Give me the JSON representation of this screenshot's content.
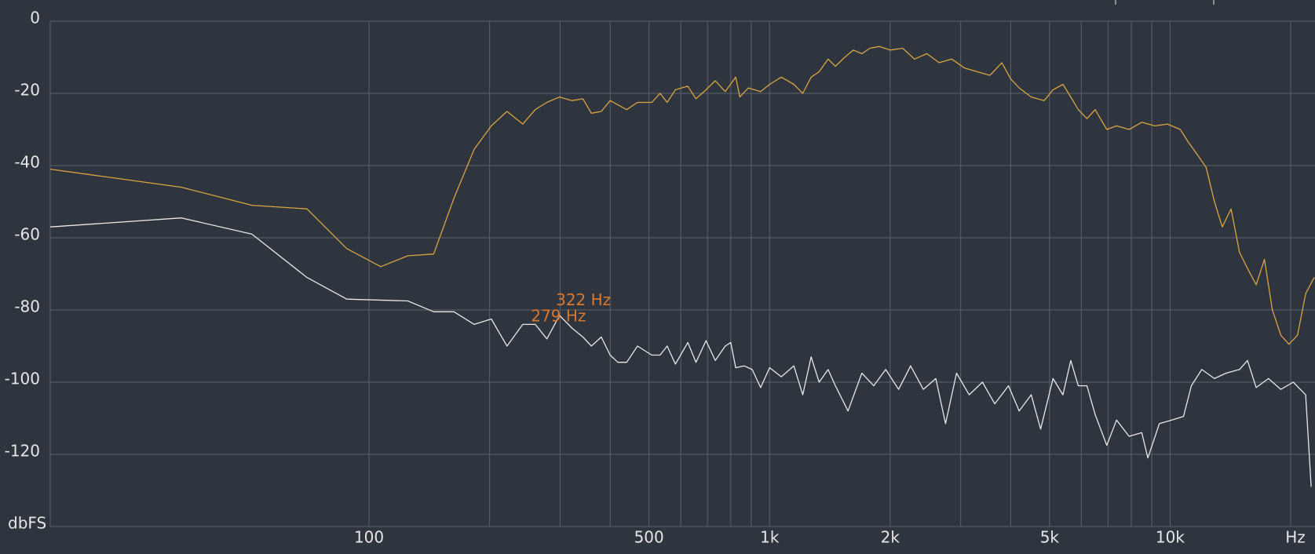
{
  "chart_data": {
    "type": "line",
    "xscale": "log",
    "xlim": [
      16,
      23000
    ],
    "ylim": [
      -140,
      0
    ],
    "xticks": [
      100,
      500,
      {
        "value": 1000,
        "label": "1k"
      },
      {
        "value": 2000,
        "label": "2k"
      },
      {
        "value": 5000,
        "label": "5k"
      },
      {
        "value": 10000,
        "label": "10k"
      }
    ],
    "xgrid_minor": [
      200,
      300,
      400,
      600,
      700,
      800,
      900,
      3000,
      4000,
      6000,
      7000,
      8000,
      9000,
      20000
    ],
    "yticks": [
      0,
      -20,
      -40,
      -60,
      -80,
      -100,
      -120
    ],
    "xlabel": "Hz",
    "ylabel": "dbFS",
    "grid": true,
    "annotations": [
      {
        "text": "322 Hz",
        "x": 322,
        "y": -77.5,
        "color": "#d9772e"
      },
      {
        "text": "279 Hz",
        "x": 279,
        "y": -82,
        "color": "#d9772e"
      }
    ],
    "series": [
      {
        "color": "#d9a441",
        "x": [
          16,
          34,
          51,
          70,
          88,
          107,
          125,
          145,
          163,
          183,
          202,
          221,
          242,
          260,
          278,
          299,
          321,
          342,
          359,
          380,
          400,
          440,
          468,
          508,
          533,
          555,
          582,
          625,
          655,
          694,
          732,
          775,
          823,
          843,
          885,
          950,
          1000,
          1070,
          1150,
          1210,
          1270,
          1330,
          1400,
          1460,
          1540,
          1620,
          1700,
          1780,
          1880,
          2000,
          2150,
          2300,
          2470,
          2650,
          2850,
          3070,
          3300,
          3550,
          3800,
          4000,
          4200,
          4500,
          4850,
          5100,
          5400,
          5650,
          5900,
          6200,
          6500,
          6950,
          7350,
          7900,
          8500,
          9150,
          9850,
          10600,
          11100,
          11700,
          12300,
          12900,
          13500,
          14200,
          14900,
          15600,
          16400,
          17200,
          18000,
          18900,
          19800,
          20800,
          21800,
          22900
        ],
        "values": [
          -41,
          -46,
          -51,
          -52,
          -63,
          -68,
          -65,
          -64.5,
          -49,
          -35.5,
          -29,
          -25,
          -28.5,
          -24.5,
          -22.5,
          -21,
          -22,
          -21.5,
          -25.5,
          -25,
          -22,
          -24.5,
          -22.5,
          -22.5,
          -20,
          -22.5,
          -19,
          -18,
          -21.5,
          -19,
          -16.5,
          -19.5,
          -15.5,
          -21,
          -18.5,
          -19.5,
          -17.5,
          -15.5,
          -17.5,
          -20,
          -15.5,
          -14,
          -10.5,
          -12.5,
          -10,
          -8,
          -9,
          -7.5,
          -7,
          -8,
          -7.5,
          -10.5,
          -9,
          -11.5,
          -10.5,
          -13,
          -14,
          -15,
          -11.5,
          -16,
          -18.5,
          -21,
          -22,
          -19,
          -17.5,
          -21,
          -24.5,
          -27,
          -24.5,
          -30,
          -29,
          -30,
          -28,
          -29,
          -28.5,
          -30,
          -33.5,
          -37,
          -40.5,
          -50,
          -57,
          -52,
          -64,
          -68.5,
          -73,
          -66,
          -80,
          -87,
          -89.5,
          -87,
          -75.5,
          -71
        ]
      },
      {
        "color": "#e8e8e8",
        "x": [
          16,
          34,
          51,
          70,
          88,
          125,
          145,
          163,
          183,
          202,
          221,
          242,
          260,
          278,
          299,
          321,
          342,
          359,
          380,
          400,
          418,
          440,
          468,
          508,
          533,
          555,
          582,
          625,
          655,
          694,
          732,
          775,
          800,
          823,
          865,
          905,
          950,
          1000,
          1070,
          1150,
          1210,
          1270,
          1330,
          1400,
          1460,
          1570,
          1700,
          1820,
          1950,
          2100,
          2250,
          2420,
          2600,
          2750,
          2930,
          3150,
          3400,
          3650,
          3950,
          4200,
          4500,
          4750,
          5100,
          5400,
          5650,
          5900,
          6200,
          6500,
          6950,
          7350,
          7900,
          8500,
          8800,
          9400,
          10100,
          10800,
          11300,
          12000,
          12900,
          13800,
          14900,
          15600,
          16400,
          17600,
          18900,
          20300,
          21800,
          22500
        ],
        "values": [
          -57,
          -54.5,
          -59,
          -71,
          -77,
          -77.5,
          -80.5,
          -80.5,
          -84,
          -82.5,
          -90,
          -84,
          -84,
          -88,
          -81.5,
          -85,
          -87.5,
          -90,
          -87.5,
          -92.5,
          -94.5,
          -94.5,
          -90,
          -92.5,
          -92.5,
          -90,
          -95,
          -89,
          -94.5,
          -88.5,
          -94,
          -90,
          -89,
          -96,
          -95.5,
          -96.5,
          -101.5,
          -96,
          -98.5,
          -95.5,
          -103.5,
          -93,
          -100,
          -96.5,
          -101,
          -108,
          -97.5,
          -101,
          -96.5,
          -102,
          -95.5,
          -102,
          -99,
          -111.5,
          -97.5,
          -103.5,
          -100,
          -106,
          -101,
          -108,
          -103.5,
          -113,
          -99,
          -103.5,
          -94,
          -101,
          -101,
          -109,
          -117.5,
          -110.5,
          -115,
          -114,
          -121,
          -111.5,
          -110.5,
          -109.5,
          -101,
          -96.5,
          -99,
          -97.5,
          -96.5,
          -94,
          -101.5,
          -99,
          -102,
          -100,
          -103.5,
          -129
        ]
      }
    ]
  }
}
